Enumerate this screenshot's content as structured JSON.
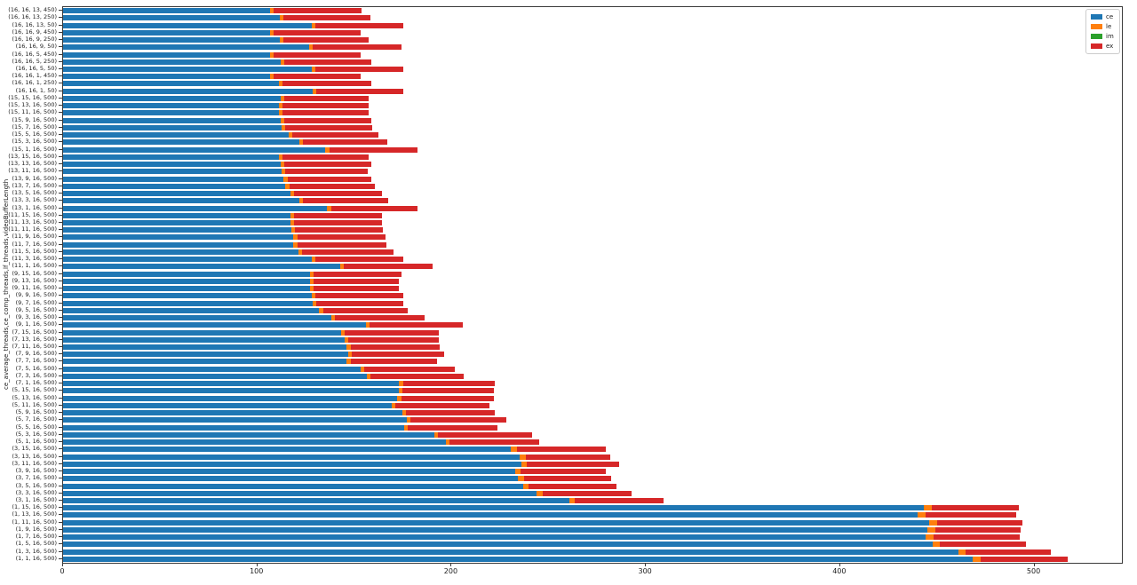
{
  "chart_data": {
    "type": "bar",
    "orientation": "horizontal",
    "stacked": true,
    "title": "",
    "xlabel": "",
    "ylabel": "ce_average_threads,ce_comp_threads,lf_threads,videoBufferLength",
    "xlim": [
      0,
      545
    ],
    "xticks": [
      0,
      100,
      200,
      300,
      400,
      500
    ],
    "grid": false,
    "legend": {
      "position": "upper-right",
      "entries": [
        {
          "label": "ce",
          "color": "#1f77b4"
        },
        {
          "label": "le",
          "color": "#ff7f0e"
        },
        {
          "label": "im",
          "color": "#2ca02c"
        },
        {
          "label": "ex",
          "color": "#d62728"
        }
      ]
    },
    "categories": [
      "(16, 16, 13, 450)",
      "(16, 16, 13, 250)",
      "(16, 16, 13, 50)",
      "(16, 16, 9, 450)",
      "(16, 16, 9, 250)",
      "(16, 16, 9, 50)",
      "(16, 16, 5, 450)",
      "(16, 16, 5, 250)",
      "(16, 16, 5, 50)",
      "(16, 16, 1, 450)",
      "(16, 16, 1, 250)",
      "(16, 16, 1, 50)",
      "(15, 15, 16, 500)",
      "(15, 13, 16, 500)",
      "(15, 11, 16, 500)",
      "(15, 9, 16, 500)",
      "(15, 7, 16, 500)",
      "(15, 5, 16, 500)",
      "(15, 3, 16, 500)",
      "(15, 1, 16, 500)",
      "(13, 15, 16, 500)",
      "(13, 13, 16, 500)",
      "(13, 11, 16, 500)",
      "(13, 9, 16, 500)",
      "(13, 7, 16, 500)",
      "(13, 5, 16, 500)",
      "(13, 3, 16, 500)",
      "(13, 1, 16, 500)",
      "(11, 15, 16, 500)",
      "(11, 13, 16, 500)",
      "(11, 11, 16, 500)",
      "(11, 9, 16, 500)",
      "(11, 7, 16, 500)",
      "(11, 5, 16, 500)",
      "(11, 3, 16, 500)",
      "(11, 1, 16, 500)",
      "(9, 15, 16, 500)",
      "(9, 13, 16, 500)",
      "(9, 11, 16, 500)",
      "(9, 9, 16, 500)",
      "(9, 7, 16, 500)",
      "(9, 5, 16, 500)",
      "(9, 3, 16, 500)",
      "(9, 1, 16, 500)",
      "(7, 15, 16, 500)",
      "(7, 13, 16, 500)",
      "(7, 11, 16, 500)",
      "(7, 9, 16, 500)",
      "(7, 7, 16, 500)",
      "(7, 5, 16, 500)",
      "(7, 3, 16, 500)",
      "(7, 1, 16, 500)",
      "(5, 15, 16, 500)",
      "(5, 13, 16, 500)",
      "(5, 11, 16, 500)",
      "(5, 9, 16, 500)",
      "(5, 7, 16, 500)",
      "(5, 5, 16, 500)",
      "(5, 3, 16, 500)",
      "(5, 1, 16, 500)",
      "(3, 15, 16, 500)",
      "(3, 13, 16, 500)",
      "(3, 11, 16, 500)",
      "(3, 9, 16, 500)",
      "(3, 7, 16, 500)",
      "(3, 5, 16, 500)",
      "(3, 3, 16, 500)",
      "(3, 1, 16, 500)",
      "(1, 15, 16, 500)",
      "(1, 13, 16, 500)",
      "(1, 11, 16, 500)",
      "(1, 9, 16, 500)",
      "(1, 7, 16, 500)",
      "(1, 5, 16, 500)",
      "(1, 3, 16, 500)",
      "(1, 1, 16, 500)"
    ],
    "series": [
      {
        "name": "ce",
        "color": "#1f77b4",
        "values": [
          106.5,
          111.5,
          128,
          106.5,
          111.5,
          126.5,
          106.5,
          112,
          128,
          106.5,
          111,
          128.3,
          112,
          111,
          111,
          112,
          112.5,
          116,
          121.5,
          135,
          111,
          112,
          112.5,
          113.5,
          114.5,
          117,
          121.5,
          136,
          117,
          117,
          117.5,
          118.5,
          118.5,
          121,
          128,
          142.5,
          127,
          127,
          127,
          128,
          128.3,
          131.8,
          138,
          155.7,
          143,
          145,
          146,
          146.6,
          146,
          153,
          156.3,
          173,
          172.7,
          172,
          169,
          174.5,
          177,
          175.5,
          191,
          197,
          230.5,
          235,
          235.7,
          232.6,
          234.3,
          236.7,
          243.7,
          260.5,
          443,
          440,
          446,
          445,
          444,
          447.4,
          460.7,
          468.4
        ]
      },
      {
        "name": "le",
        "color": "#ff7f0e",
        "values": [
          2,
          2,
          2,
          2,
          2,
          2,
          2,
          2,
          2,
          2,
          2,
          2,
          2,
          2,
          2,
          2,
          2,
          2,
          2,
          2,
          2,
          2,
          2,
          2,
          2,
          2,
          2,
          2,
          2,
          2,
          2,
          2,
          2,
          2,
          2,
          2,
          2,
          2,
          2,
          2,
          2,
          2,
          2,
          2,
          2,
          2,
          2,
          2,
          2,
          2,
          2,
          2,
          2,
          2,
          2,
          2,
          2,
          2,
          2,
          2,
          3,
          3,
          3,
          3,
          3,
          3,
          3,
          3,
          4,
          4,
          4,
          4,
          4,
          4,
          4,
          4
        ]
      },
      {
        "name": "im",
        "color": "#2ca02c",
        "values": [
          0,
          0,
          0,
          0,
          0,
          0,
          0,
          0,
          0,
          0,
          0,
          0,
          0,
          0,
          0,
          0,
          0,
          0,
          0,
          0,
          0,
          0,
          0,
          0,
          0,
          0,
          0,
          0,
          0,
          0,
          0,
          0,
          0,
          0,
          0,
          0,
          0,
          0,
          0,
          0,
          0,
          0,
          0,
          0,
          0,
          0,
          0,
          0,
          0,
          0,
          0,
          0,
          0,
          0,
          0,
          0,
          0,
          0,
          0,
          0,
          0,
          0,
          0,
          0,
          0,
          0,
          0,
          0,
          0,
          0,
          0,
          0,
          0,
          0,
          0,
          0
        ]
      },
      {
        "name": "ex",
        "color": "#d62728",
        "values": [
          45,
          44.5,
          45,
          44.5,
          44,
          45.5,
          44.5,
          44.5,
          45,
          44.5,
          45.5,
          44.7,
          43.5,
          44.3,
          44.3,
          44.7,
          44.5,
          44.5,
          43.5,
          45.5,
          44.3,
          44.5,
          42.5,
          43,
          44,
          45,
          44,
          44.5,
          45,
          45.3,
          44.9,
          45.5,
          46,
          47,
          45,
          45.5,
          45,
          44,
          43.7,
          45,
          44.9,
          43.8,
          46.3,
          48.2,
          48.3,
          46.3,
          45.7,
          47.4,
          44.3,
          46.7,
          48.1,
          47,
          47.1,
          47.8,
          48.7,
          45.5,
          49,
          46.1,
          48.4,
          46,
          45.9,
          43.5,
          47.7,
          43.8,
          44.9,
          45,
          45.9,
          45.5,
          45,
          46.4,
          43.8,
          44,
          44.4,
          44.1,
          43.8,
          44.6
        ]
      }
    ]
  }
}
